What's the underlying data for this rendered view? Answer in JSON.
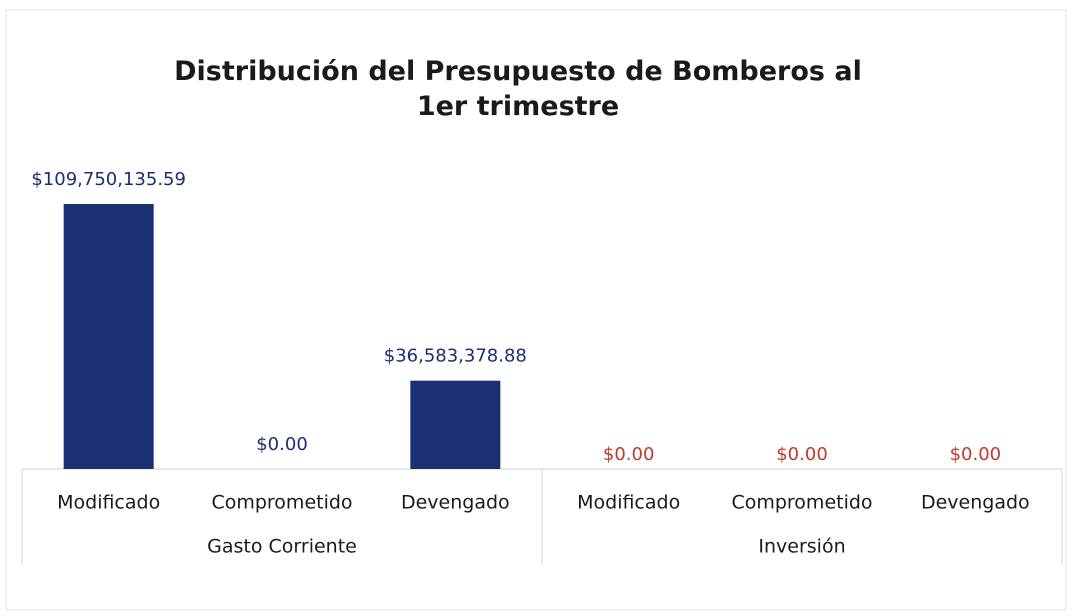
{
  "chart_data": {
    "type": "bar",
    "title": "Distribución del Presupuesto de Bomberos al 1er trimestre",
    "color": "#1b2f73",
    "groups": [
      {
        "label": "Gasto Corriente",
        "label_color": "#1b2f73",
        "categories": [
          "Modificado",
          "Comprometido",
          "Devengado"
        ],
        "values": [
          109750135.59,
          0,
          36583378.88
        ],
        "value_labels": [
          "$109,750,135.59",
          "$0.00",
          "$36,583,378.88"
        ]
      },
      {
        "label": "Inversión",
        "label_color": "#c0392b",
        "categories": [
          "Modificado",
          "Comprometido",
          "Devengado"
        ],
        "values": [
          0,
          0,
          0
        ],
        "value_labels": [
          "$0.00",
          "$0.00",
          "$0.00"
        ]
      }
    ]
  }
}
